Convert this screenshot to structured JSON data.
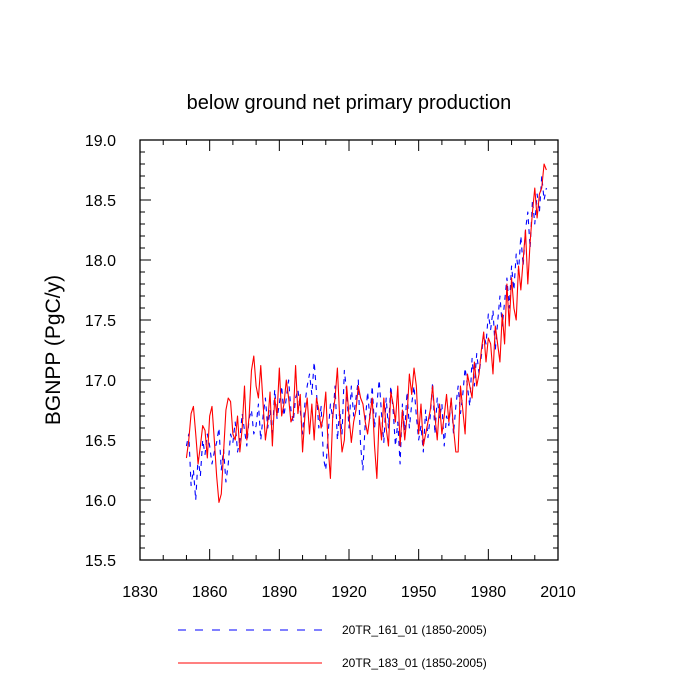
{
  "chart_data": {
    "type": "line",
    "title": "below ground net primary production",
    "xlabel": "",
    "ylabel": "BGNPP  (PgC/y)",
    "xlim": [
      1830,
      2010
    ],
    "ylim": [
      15.5,
      19.0
    ],
    "x_ticks": [
      1830,
      1860,
      1890,
      1920,
      1950,
      1980,
      2010
    ],
    "x_tick_labels": [
      "1830",
      "1860",
      "1890",
      "1920",
      "1950",
      "1980",
      "2010"
    ],
    "y_ticks": [
      15.5,
      16.0,
      16.5,
      17.0,
      17.5,
      18.0,
      18.5,
      19.0
    ],
    "y_tick_labels": [
      "15.5",
      "16.0",
      "16.5",
      "17.0",
      "17.5",
      "18.0",
      "18.5",
      "19.0"
    ],
    "x_start": 1850,
    "x_step": 1,
    "series": [
      {
        "name": "20TR_161_01 (1850-2005)",
        "color": "#0000ff",
        "dash": "dashed",
        "values": [
          16.45,
          16.55,
          16.12,
          16.25,
          16.0,
          16.35,
          16.2,
          16.5,
          16.38,
          16.55,
          16.45,
          16.3,
          16.4,
          16.48,
          16.6,
          16.25,
          16.42,
          16.15,
          16.3,
          16.55,
          16.48,
          16.65,
          16.4,
          16.5,
          16.72,
          16.58,
          16.45,
          16.68,
          16.75,
          16.55,
          16.62,
          16.8,
          16.5,
          16.7,
          16.85,
          16.6,
          16.75,
          16.52,
          16.92,
          16.68,
          16.8,
          16.95,
          16.7,
          16.85,
          17.0,
          16.75,
          16.65,
          16.85,
          16.92,
          16.75,
          16.55,
          16.8,
          16.95,
          17.05,
          16.88,
          17.15,
          16.9,
          16.6,
          16.78,
          16.35,
          16.25,
          16.55,
          16.8,
          16.68,
          16.95,
          16.5,
          16.75,
          16.55,
          17.08,
          16.9,
          16.6,
          16.95,
          16.7,
          16.85,
          17.0,
          16.45,
          16.25,
          16.65,
          16.9,
          16.68,
          16.95,
          16.6,
          16.8,
          17.0,
          16.72,
          16.48,
          16.85,
          16.6,
          16.95,
          16.75,
          16.45,
          16.65,
          16.3,
          16.8,
          16.58,
          16.9,
          16.6,
          16.8,
          16.95,
          16.7,
          16.5,
          16.62,
          16.4,
          16.75,
          16.52,
          16.7,
          16.98,
          16.55,
          16.85,
          16.68,
          16.8,
          16.45,
          16.7,
          16.62,
          16.85,
          16.55,
          16.78,
          16.95,
          16.72,
          16.88,
          17.1,
          16.95,
          16.78,
          17.18,
          16.95,
          17.22,
          17.05,
          17.2,
          17.38,
          17.3,
          17.55,
          17.42,
          17.58,
          17.25,
          17.48,
          17.7,
          17.45,
          17.65,
          17.85,
          17.6,
          17.95,
          17.75,
          18.05,
          17.9,
          18.2,
          17.95,
          18.25,
          18.4,
          18.1,
          18.5,
          18.3,
          18.55,
          18.4,
          18.7,
          18.5,
          18.6
        ]
      },
      {
        "name": "20TR_183_01 (1850-2005)",
        "color": "#ff0000",
        "dash": "solid",
        "values": [
          16.35,
          16.5,
          16.72,
          16.78,
          16.55,
          16.3,
          16.45,
          16.62,
          16.58,
          16.35,
          16.7,
          16.78,
          16.5,
          16.2,
          15.98,
          16.05,
          16.4,
          16.75,
          16.85,
          16.82,
          16.55,
          16.5,
          16.7,
          16.4,
          16.6,
          16.95,
          16.5,
          16.7,
          17.08,
          17.2,
          16.95,
          16.85,
          17.12,
          16.8,
          16.5,
          16.65,
          16.9,
          16.45,
          16.85,
          16.7,
          17.1,
          16.7,
          16.8,
          17.0,
          16.85,
          16.65,
          16.7,
          17.12,
          16.72,
          16.88,
          16.4,
          16.7,
          16.85,
          16.55,
          16.8,
          16.5,
          16.85,
          16.75,
          16.6,
          16.7,
          16.9,
          16.45,
          16.18,
          16.7,
          16.85,
          17.1,
          16.68,
          16.4,
          16.5,
          16.95,
          16.7,
          16.48,
          16.65,
          16.75,
          16.95,
          16.85,
          16.8,
          16.65,
          16.55,
          16.7,
          16.85,
          16.45,
          16.18,
          16.7,
          16.5,
          16.85,
          16.6,
          16.45,
          16.9,
          16.8,
          16.65,
          16.95,
          16.45,
          16.75,
          16.5,
          16.7,
          17.05,
          16.88,
          17.1,
          16.95,
          16.55,
          16.8,
          16.45,
          16.55,
          16.65,
          16.75,
          16.95,
          16.7,
          16.5,
          16.8,
          16.55,
          16.7,
          16.88,
          16.65,
          16.85,
          16.6,
          16.4,
          16.4,
          16.95,
          16.75,
          16.55,
          17.05,
          16.95,
          16.85,
          17.15,
          16.95,
          17.05,
          17.25,
          17.4,
          17.15,
          17.35,
          17.3,
          17.05,
          17.45,
          17.3,
          17.15,
          17.55,
          17.3,
          17.8,
          17.45,
          17.85,
          17.6,
          17.5,
          17.95,
          17.75,
          18.0,
          18.25,
          17.8,
          18.15,
          18.4,
          18.6,
          18.35,
          18.55,
          18.6,
          18.8,
          18.75
        ]
      }
    ],
    "legend_position": "bottom"
  }
}
